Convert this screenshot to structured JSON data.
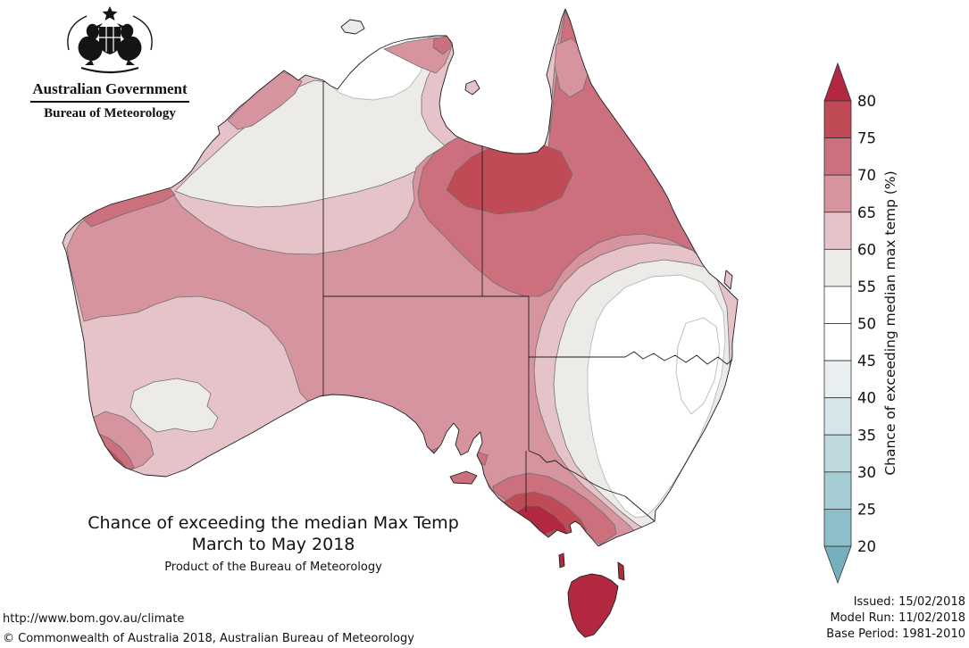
{
  "logo": {
    "government": "Australian Government",
    "bureau": "Bureau of Meteorology"
  },
  "title": {
    "line1": "Chance of exceeding the median Max Temp",
    "line2": "March to May 2018",
    "line3": "Product of the Bureau of Meteorology"
  },
  "footer": {
    "url": "http://www.bom.gov.au/climate",
    "copyright": "© Commonwealth of Australia 2018, Australian Bureau of Meteorology"
  },
  "issue_block": {
    "issued": "Issued: 15/02/2018",
    "model_run": "Model Run: 11/02/2018",
    "base_period": "Base Period: 1981-2010"
  },
  "colorbar": {
    "label": "Chance of exceeding median max temp (%)",
    "ticks": [
      80,
      75,
      70,
      65,
      60,
      55,
      50,
      45,
      40,
      35,
      30,
      25,
      20
    ],
    "segment_colors_top_to_bottom": [
      "#c04a56",
      "#cb707c",
      "#d6949f",
      "#e6c3c9",
      "#edebe8",
      "#ffffff",
      "#ffffff",
      "#e9eff1",
      "#d5e5e9",
      "#bfd9df",
      "#a6ccd4",
      "#8dbfc9"
    ],
    "arrow_top_color": "#b22840",
    "arrow_bottom_color": "#74b1bd"
  },
  "map_palette": {
    "gt80": "#b22840",
    "p75_80": "#c04a56",
    "p70_75": "#cb707c",
    "p65_70": "#d6949f",
    "p60_65": "#e6c3c9",
    "p55_60": "#edebe8",
    "p50_55": "#ffffff"
  }
}
